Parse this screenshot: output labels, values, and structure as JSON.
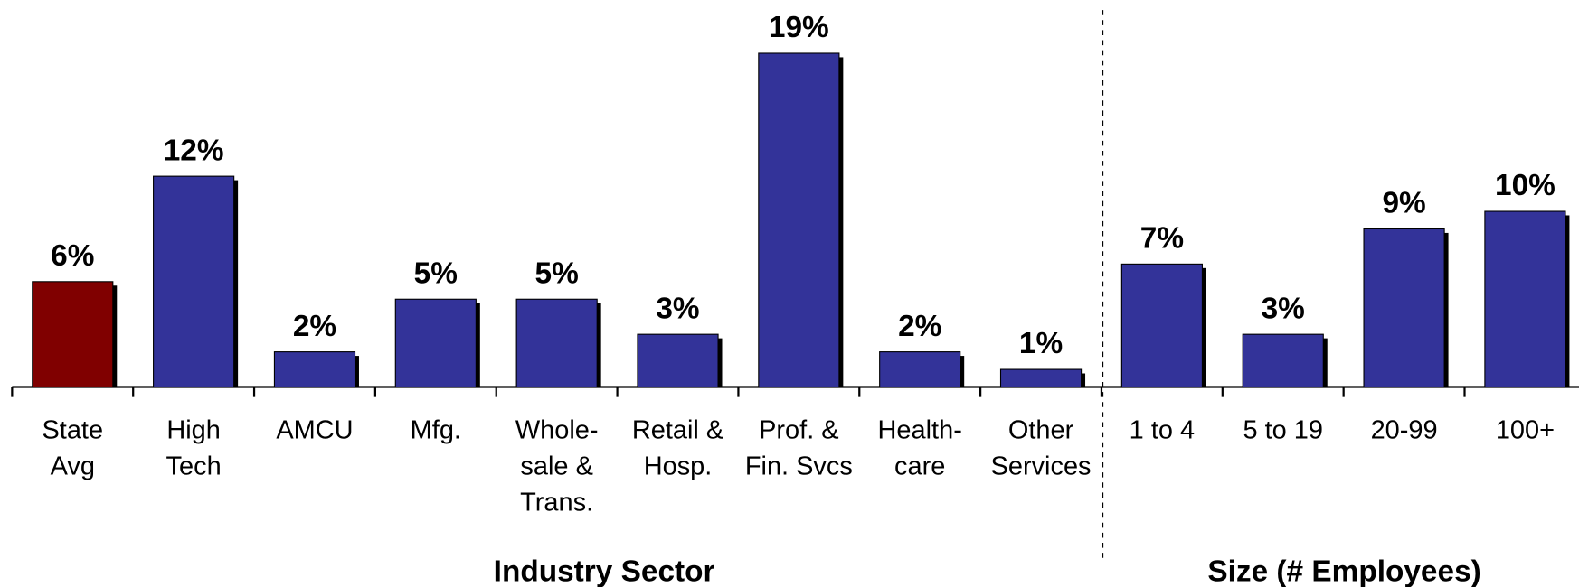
{
  "chart_data": {
    "type": "bar",
    "categories": [
      "State\nAvg",
      "High\nTech",
      "AMCU",
      "Mfg.",
      "Whole-\nsale &\nTrans.",
      "Retail &\nHosp.",
      "Prof.  &\nFin. Svcs",
      "Health-\ncare",
      "Other\nServices",
      "1 to 4",
      "5 to 19",
      "20-99",
      "100+"
    ],
    "values": [
      6,
      12,
      2,
      5,
      5,
      3,
      19,
      2,
      1,
      7,
      3,
      9,
      10
    ],
    "value_labels": [
      "6%",
      "12%",
      "2%",
      "5%",
      "5%",
      "3%",
      "19%",
      "2%",
      "1%",
      "7%",
      "3%",
      "9%",
      "10%"
    ],
    "colors": [
      "#800000",
      "#333399",
      "#333399",
      "#333399",
      "#333399",
      "#333399",
      "#333399",
      "#333399",
      "#333399",
      "#333399",
      "#333399",
      "#333399",
      "#333399"
    ],
    "group_labels": [
      "Industry Sector",
      "Size (# Employees)"
    ]
  }
}
